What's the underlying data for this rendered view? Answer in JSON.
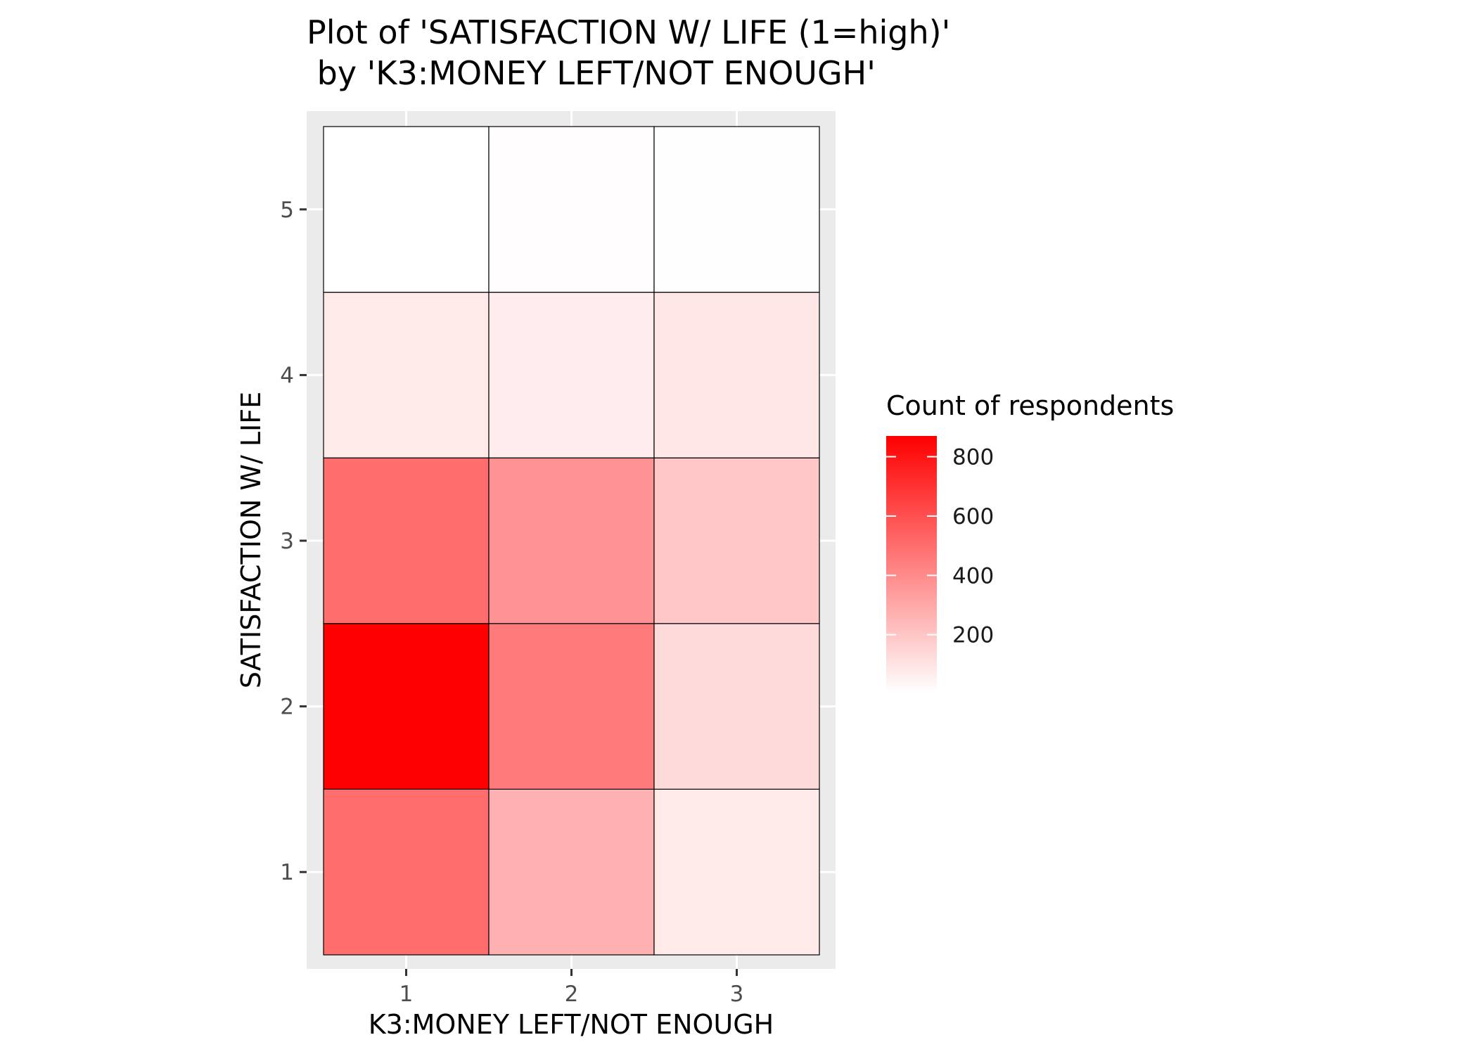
{
  "chart_data": {
    "type": "heatmap",
    "title_line1": "Plot of 'SATISFACTION W/ LIFE (1=high)'",
    "title_line2": " by 'K3:MONEY LEFT/NOT ENOUGH'",
    "xlabel": "K3:MONEY LEFT/NOT ENOUGH",
    "ylabel": "SATISFACTION W/ LIFE",
    "x_categories": [
      "1",
      "2",
      "3"
    ],
    "y_categories": [
      "1",
      "2",
      "3",
      "4",
      "5"
    ],
    "cells": [
      {
        "x": "1",
        "y": "1",
        "value": 500
      },
      {
        "x": "2",
        "y": "1",
        "value": 270
      },
      {
        "x": "3",
        "y": "1",
        "value": 80
      },
      {
        "x": "1",
        "y": "2",
        "value": 870
      },
      {
        "x": "2",
        "y": "2",
        "value": 455
      },
      {
        "x": "3",
        "y": "2",
        "value": 130
      },
      {
        "x": "1",
        "y": "3",
        "value": 500
      },
      {
        "x": "2",
        "y": "3",
        "value": 375
      },
      {
        "x": "3",
        "y": "3",
        "value": 195
      },
      {
        "x": "1",
        "y": "4",
        "value": 75
      },
      {
        "x": "2",
        "y": "4",
        "value": 70
      },
      {
        "x": "3",
        "y": "4",
        "value": 85
      },
      {
        "x": "1",
        "y": "5",
        "value": 5
      },
      {
        "x": "2",
        "y": "5",
        "value": 12
      },
      {
        "x": "3",
        "y": "5",
        "value": 10
      }
    ],
    "legend": {
      "title": "Count of respondents",
      "breaks": [
        200,
        400,
        600,
        800
      ],
      "min": 5,
      "max": 870,
      "low_color": "#ffffff",
      "high_color": "#ff0000",
      "position": "right"
    },
    "panel_background": "#ebebeb",
    "grid": true
  }
}
